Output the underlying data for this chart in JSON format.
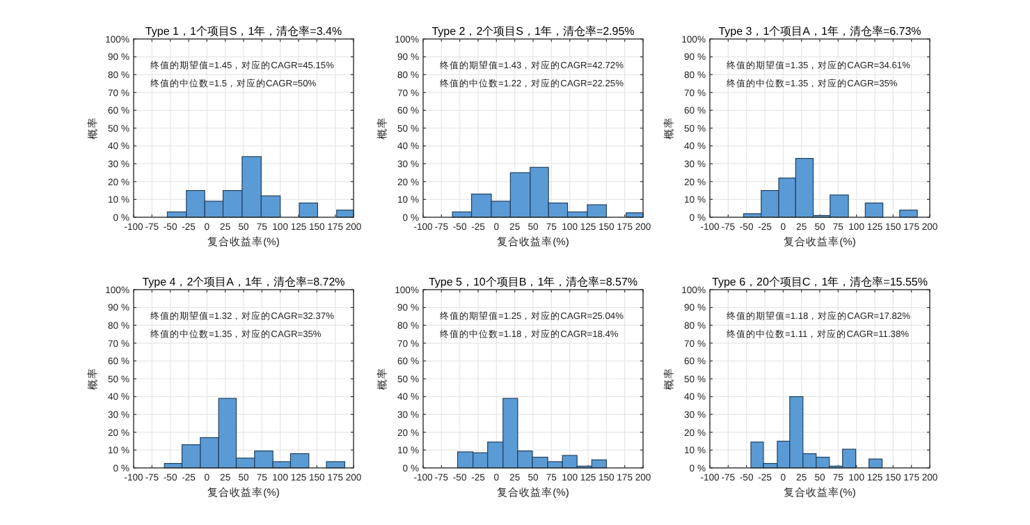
{
  "chart_data": [
    {
      "type": "histogram",
      "title": "Type 1，1个项目S，1年，清仓率=3.4%",
      "xlabel": "复合收益率(%)",
      "ylabel": "概率",
      "annotations": [
        "终值的期望值=1.45，对应的CAGR=45.15%",
        "终值的中位数=1.5，对应的CAGR=50%"
      ],
      "color": "#5b9bd5",
      "grid": true,
      "bins": [
        -54,
        -28,
        -3,
        22,
        48,
        74,
        100,
        126,
        151,
        177,
        200
      ],
      "values": [
        3,
        15,
        9,
        15,
        34,
        12,
        0,
        8,
        0,
        4
      ],
      "xlim": [
        -100,
        200
      ],
      "xticks": [
        -100,
        -75,
        -50,
        -25,
        0,
        25,
        50,
        75,
        100,
        125,
        150,
        175,
        200
      ],
      "ylim": [
        0,
        100
      ],
      "yticks": [
        {
          "value": 0,
          "label": "0 %"
        },
        {
          "value": 10,
          "label": "10 %"
        },
        {
          "value": 20,
          "label": "20 %"
        },
        {
          "value": 30,
          "label": "30 %"
        },
        {
          "value": 40,
          "label": "40 %"
        },
        {
          "value": 50,
          "label": "50 %"
        },
        {
          "value": 60,
          "label": "60 %"
        },
        {
          "value": 70,
          "label": "70 %"
        },
        {
          "value": 80,
          "label": "80 %"
        },
        {
          "value": 90,
          "label": "90 %"
        },
        {
          "value": 100,
          "label": "100%"
        }
      ]
    },
    {
      "type": "histogram",
      "title": "Type 2，2个项目S，1年，清仓率=2.95%",
      "xlabel": "复合收益率(%)",
      "ylabel": "概率",
      "annotations": [
        "终值的期望值=1.43，对应的CAGR=42.72%",
        "终值的中位数=1.22，对应的CAGR=22.25%"
      ],
      "color": "#5b9bd5",
      "grid": true,
      "bins": [
        -60,
        -34,
        -7,
        19,
        46,
        71,
        97,
        124,
        150,
        177,
        200
      ],
      "values": [
        3,
        13,
        9,
        25,
        28,
        8,
        3,
        7,
        0,
        2.5
      ],
      "xlim": [
        -100,
        200
      ],
      "xticks": [
        -100,
        -75,
        -50,
        -25,
        0,
        25,
        50,
        75,
        100,
        125,
        150,
        175,
        200
      ],
      "ylim": [
        0,
        100
      ],
      "yticks": [
        {
          "value": 0,
          "label": "0 %"
        },
        {
          "value": 10,
          "label": "10 %"
        },
        {
          "value": 20,
          "label": "20 %"
        },
        {
          "value": 30,
          "label": "30 %"
        },
        {
          "value": 40,
          "label": "40 %"
        },
        {
          "value": 50,
          "label": "50 %"
        },
        {
          "value": 60,
          "label": "60 %"
        },
        {
          "value": 70,
          "label": "70 %"
        },
        {
          "value": 80,
          "label": "80 %"
        },
        {
          "value": 90,
          "label": "90 %"
        },
        {
          "value": 100,
          "label": "100%"
        }
      ]
    },
    {
      "type": "histogram",
      "title": "Type 3，1个项目A，1年，清仓率=6.73%",
      "xlabel": "复合收益率(%)",
      "ylabel": "概率",
      "annotations": [
        "终值的期望值=1.35，对应的CAGR=34.61%",
        "终值的中位数=1.35，对应的CAGR=35%"
      ],
      "color": "#5b9bd5",
      "grid": true,
      "bins": [
        -54,
        -30,
        -6,
        17,
        41,
        64,
        89,
        112,
        136,
        159,
        183
      ],
      "values": [
        2,
        15,
        22,
        33,
        1,
        12.5,
        0,
        8,
        0,
        4
      ],
      "xlim": [
        -100,
        200
      ],
      "xticks": [
        -100,
        -75,
        -50,
        -25,
        0,
        25,
        50,
        75,
        100,
        125,
        150,
        175,
        200
      ],
      "ylim": [
        0,
        100
      ],
      "yticks": [
        {
          "value": 0,
          "label": "0 %"
        },
        {
          "value": 10,
          "label": "10 %"
        },
        {
          "value": 20,
          "label": "20 %"
        },
        {
          "value": 30,
          "label": "30 %"
        },
        {
          "value": 40,
          "label": "40 %"
        },
        {
          "value": 50,
          "label": "50 %"
        },
        {
          "value": 60,
          "label": "60 %"
        },
        {
          "value": 70,
          "label": "70 %"
        },
        {
          "value": 80,
          "label": "80 %"
        },
        {
          "value": 90,
          "label": "90 %"
        },
        {
          "value": 100,
          "label": "100%"
        }
      ]
    },
    {
      "type": "histogram",
      "title": "Type 4，2个项目A，1年，清仓率=8.72%",
      "xlabel": "复合收益率(%)",
      "ylabel": "概率",
      "annotations": [
        "终值的期望值=1.32，对应的CAGR=32.37%",
        "终值的中位数=1.35，对应的CAGR=35%"
      ],
      "color": "#5b9bd5",
      "grid": true,
      "bins": [
        -58,
        -34,
        -9,
        16,
        40,
        65,
        90,
        114,
        139,
        163,
        188
      ],
      "values": [
        2.5,
        13,
        17,
        39,
        5.5,
        9.5,
        3.5,
        8,
        0,
        3.5
      ],
      "xlim": [
        -100,
        200
      ],
      "xticks": [
        -100,
        -75,
        -50,
        -25,
        0,
        25,
        50,
        75,
        100,
        125,
        150,
        175,
        200
      ],
      "ylim": [
        0,
        100
      ],
      "yticks": [
        {
          "value": 0,
          "label": "0 %"
        },
        {
          "value": 10,
          "label": "10 %"
        },
        {
          "value": 20,
          "label": "20 %"
        },
        {
          "value": 30,
          "label": "30 %"
        },
        {
          "value": 40,
          "label": "40 %"
        },
        {
          "value": 50,
          "label": "50 %"
        },
        {
          "value": 60,
          "label": "60 %"
        },
        {
          "value": 70,
          "label": "70 %"
        },
        {
          "value": 80,
          "label": "80 %"
        },
        {
          "value": 90,
          "label": "90 %"
        },
        {
          "value": 100,
          "label": "100%"
        }
      ]
    },
    {
      "type": "histogram",
      "title": "Type 5，10个项目B，1年，清仓率=8.57%",
      "xlabel": "复合收益率(%)",
      "ylabel": "概率",
      "annotations": [
        "终值的期望值=1.25，对应的CAGR=25.04%",
        "终值的中位数=1.18，对应的CAGR=18.4%"
      ],
      "color": "#5b9bd5",
      "grid": true,
      "bins": [
        -53,
        -32,
        -12,
        9,
        29,
        49,
        70,
        90,
        110,
        130,
        150
      ],
      "values": [
        9,
        8.5,
        14.5,
        39,
        9.5,
        6,
        3.5,
        7,
        1,
        4.5
      ],
      "xlim": [
        -100,
        200
      ],
      "xticks": [
        -100,
        -75,
        -50,
        -25,
        0,
        25,
        50,
        75,
        100,
        125,
        150,
        175,
        200
      ],
      "ylim": [
        0,
        100
      ],
      "yticks": [
        {
          "value": 0,
          "label": "0 %"
        },
        {
          "value": 10,
          "label": "10 %"
        },
        {
          "value": 20,
          "label": "20 %"
        },
        {
          "value": 30,
          "label": "30 %"
        },
        {
          "value": 40,
          "label": "40 %"
        },
        {
          "value": 50,
          "label": "50 %"
        },
        {
          "value": 60,
          "label": "60 %"
        },
        {
          "value": 70,
          "label": "70 %"
        },
        {
          "value": 80,
          "label": "80 %"
        },
        {
          "value": 90,
          "label": "90 %"
        },
        {
          "value": 100,
          "label": "100%"
        }
      ]
    },
    {
      "type": "histogram",
      "title": "Type 6，20个项目C，1年，清仓率=15.55%",
      "xlabel": "复合收益率(%)",
      "ylabel": "概率",
      "annotations": [
        "终值的期望值=1.18，对应的CAGR=17.82%",
        "终值的中位数=1.11，对应的CAGR=11.38%"
      ],
      "color": "#5b9bd5",
      "grid": true,
      "bins": [
        -44,
        -27,
        -8,
        9,
        27,
        45,
        63,
        81,
        99,
        117,
        135
      ],
      "values": [
        14.5,
        2.5,
        15,
        40,
        8,
        6,
        1,
        10.5,
        0,
        5
      ],
      "xlim": [
        -100,
        200
      ],
      "xticks": [
        -100,
        -75,
        -50,
        -25,
        0,
        25,
        50,
        75,
        100,
        125,
        150,
        175,
        200
      ],
      "ylim": [
        0,
        100
      ],
      "yticks": [
        {
          "value": 0,
          "label": "0 %"
        },
        {
          "value": 10,
          "label": "10 %"
        },
        {
          "value": 20,
          "label": "20 %"
        },
        {
          "value": 30,
          "label": "30 %"
        },
        {
          "value": 40,
          "label": "40 %"
        },
        {
          "value": 50,
          "label": "50 %"
        },
        {
          "value": 60,
          "label": "60 %"
        },
        {
          "value": 70,
          "label": "70 %"
        },
        {
          "value": 80,
          "label": "80 %"
        },
        {
          "value": 90,
          "label": "90 %"
        },
        {
          "value": 100,
          "label": "100%"
        }
      ]
    }
  ]
}
